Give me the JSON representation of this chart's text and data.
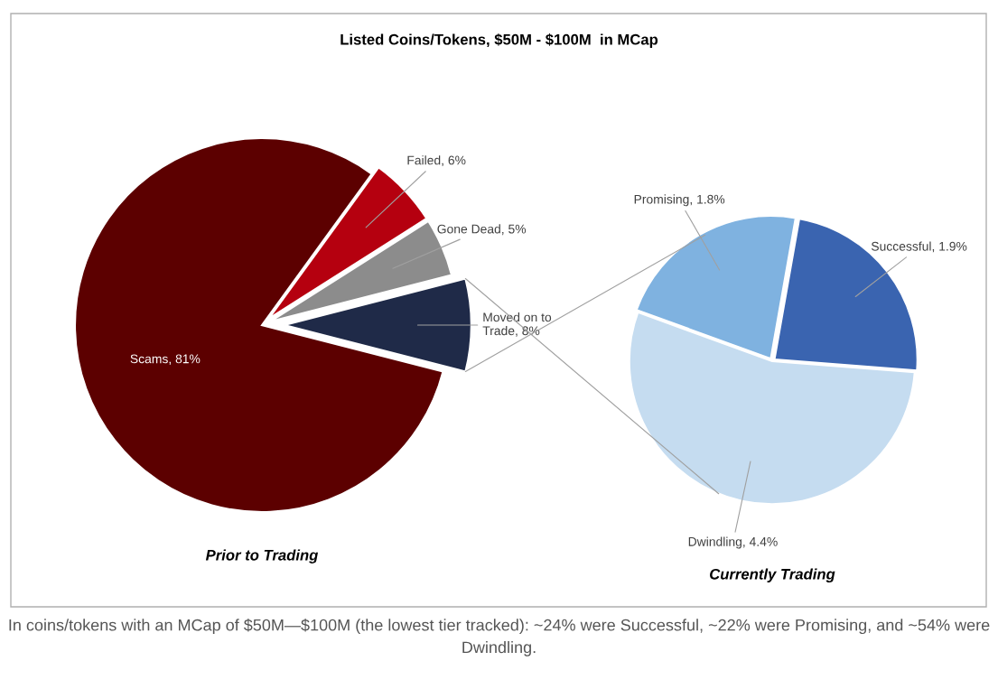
{
  "chart_data": [
    {
      "type": "pie",
      "title": "Listed Coins/Tokens, $50M - $100M  in MCap",
      "xlabel": "Prior to Trading",
      "categories": [
        "Scams",
        "Failed",
        "Gone Dead",
        "Moved on to Trade"
      ],
      "values": [
        81,
        6,
        5,
        8
      ],
      "colors": [
        "#5c0000",
        "#b5000f",
        "#8c8c8c",
        "#1f2a48"
      ],
      "value_labels": [
        "81%",
        "6%",
        "5%",
        "8%"
      ],
      "annotations": [
        "In coins/tokens with an MCap of $50M—$100M (the lowest tier tracked): ~24% were Successful, ~22% were Promising, and ~54% were Dwindling."
      ]
    },
    {
      "type": "pie",
      "xlabel": "Currently Trading",
      "categories": [
        "Promising",
        "Successful",
        "Dwindling"
      ],
      "values": [
        1.8,
        1.9,
        4.4
      ],
      "colors": [
        "#7fb2e0",
        "#3a64b0",
        "#c5dcf0"
      ],
      "value_labels": [
        "1.8%",
        "1.9%",
        "4.4%"
      ]
    }
  ]
}
